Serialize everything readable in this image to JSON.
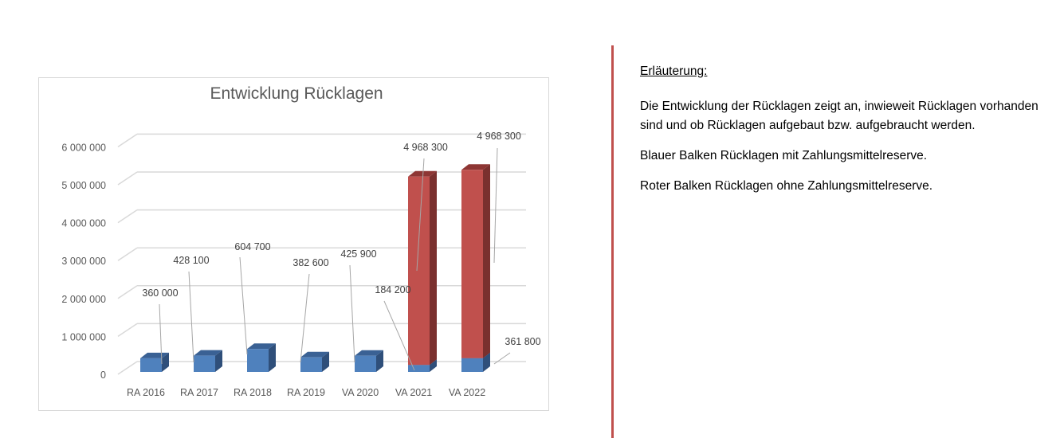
{
  "chart_data": {
    "type": "bar",
    "stacked": true,
    "three_d": true,
    "title": "Entwicklung Rücklagen",
    "categories": [
      "RA 2016",
      "RA 2017",
      "RA 2018",
      "RA 2019",
      "VA 2020",
      "VA 2021",
      "VA 2022"
    ],
    "series": [
      {
        "name": "Rücklagen mit Zahlungsmittelreserve",
        "color": "#4f81bd",
        "values": [
          360000,
          428100,
          604700,
          382600,
          425900,
          184200,
          361800
        ],
        "labels": [
          "360 000",
          "428 100",
          "604 700",
          "382 600",
          "425 900",
          "184 200",
          "361 800"
        ]
      },
      {
        "name": "Rücklagen ohne Zahlungsmittelreserve",
        "color": "#c0504d",
        "values": [
          0,
          0,
          0,
          0,
          0,
          4968300,
          4968300
        ],
        "labels": [
          "",
          "",
          "",
          "",
          "",
          "4 968 300",
          "4 968 300"
        ]
      }
    ],
    "yticks": [
      "0",
      "1 000 000",
      "2 000 000",
      "3 000 000",
      "4 000 000",
      "5 000 000",
      "6 000 000"
    ],
    "ylim": [
      0,
      6000000
    ],
    "grid": true,
    "legend": "none"
  },
  "explanation": {
    "heading": "Erläuterung:",
    "paragraphs": [
      "Die Entwicklung der Rücklagen zeigt an, inwieweit Rücklagen vorhanden sind und ob Rücklagen aufgebaut bzw. aufgebraucht werden.",
      "Blauer Balken Rücklagen mit Zahlungsmittelreserve.",
      "Roter Balken Rücklagen ohne Zahlungsmittelreserve."
    ]
  }
}
